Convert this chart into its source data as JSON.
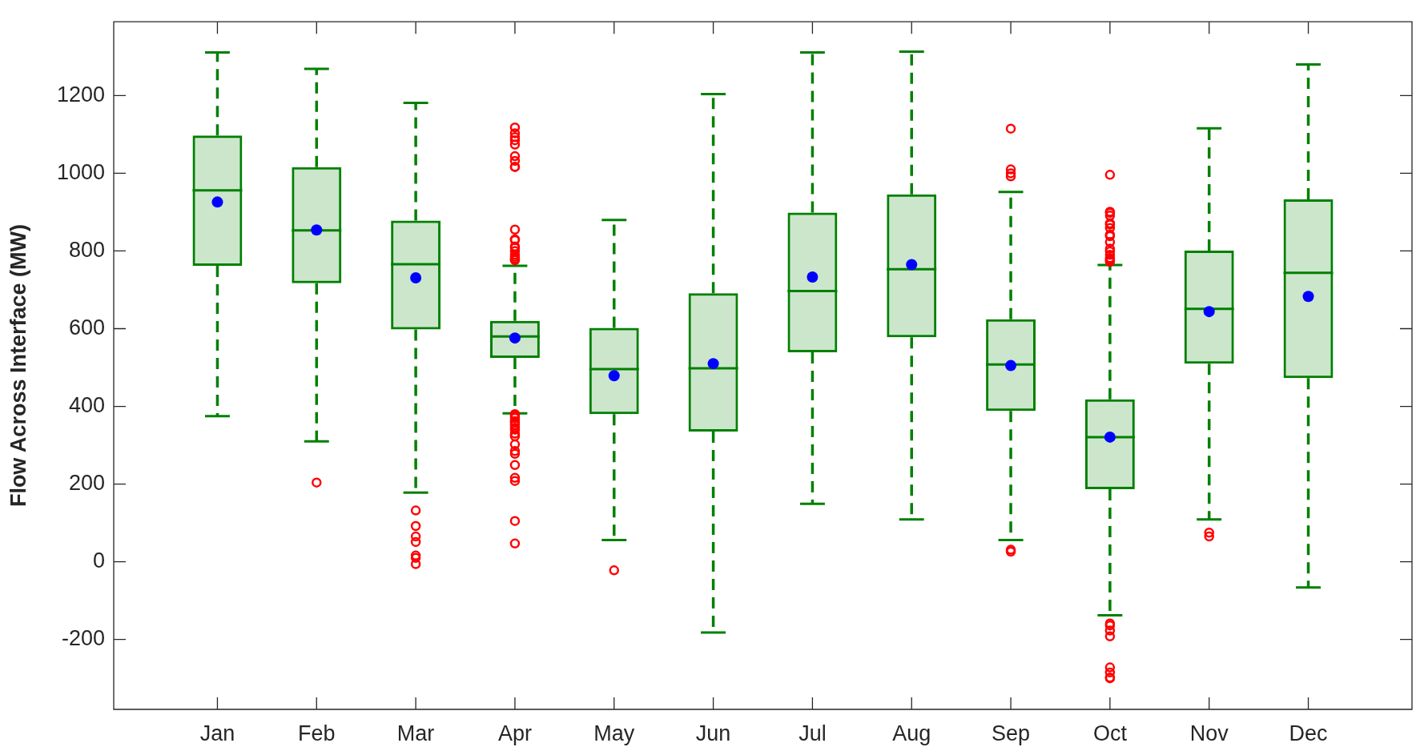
{
  "chart_data": {
    "type": "box",
    "ylabel": "Flow Across Interface (MW)",
    "categories": [
      "Jan",
      "Feb",
      "Mar",
      "Apr",
      "May",
      "Jun",
      "Jul",
      "Aug",
      "Sep",
      "Oct",
      "Nov",
      "Dec"
    ],
    "ylim": [
      -380,
      1390
    ],
    "yticks": [
      -200,
      0,
      200,
      400,
      600,
      800,
      1000,
      1200
    ],
    "series": [
      {
        "color": "#008000",
        "boxes": [
          {
            "low": 375,
            "q1": 762,
            "median": 956,
            "q3": 1097,
            "high": 1311,
            "mean": 926
          },
          {
            "low": 310,
            "q1": 717,
            "median": 853,
            "q3": 1016,
            "high": 1269,
            "mean": 854,
            "outliers": [
              204
            ]
          },
          {
            "low": 178,
            "q1": 598,
            "median": 766,
            "q3": 878,
            "high": 1181,
            "mean": 731,
            "outliers": [
              132,
              92,
              65,
              51,
              16,
              10,
              -6
            ]
          },
          {
            "low": 382,
            "q1": 525,
            "median": 580,
            "q3": 620,
            "high": 762,
            "mean": 576,
            "outliers": [
              1118,
              1103,
              1093,
              1085,
              1074,
              1044,
              1032,
              1017,
              1016,
              855,
              830,
              828,
              812,
              808,
              800,
              790,
              785,
              780,
              778,
              776,
              380,
              378,
              375,
              370,
              362,
              358,
              352,
              345,
              340,
              330,
              323,
              302,
              285,
              278,
              249,
              216,
              208,
              105,
              47
            ]
          },
          {
            "low": 56,
            "q1": 380,
            "median": 496,
            "q3": 602,
            "high": 880,
            "mean": 479,
            "outliers": [
              -22
            ]
          },
          {
            "low": -182,
            "q1": 335,
            "median": 498,
            "q3": 691,
            "high": 1204,
            "mean": 510
          },
          {
            "low": 149,
            "q1": 539,
            "median": 697,
            "q3": 899,
            "high": 1311,
            "mean": 733
          },
          {
            "low": 109,
            "q1": 578,
            "median": 753,
            "q3": 946,
            "high": 1313,
            "mean": 765
          },
          {
            "low": 56,
            "q1": 388,
            "median": 508,
            "q3": 624,
            "high": 952,
            "mean": 505,
            "outliers": [
              1115,
              1010,
              1000,
              992,
              31,
              26
            ]
          },
          {
            "low": -138,
            "q1": 187,
            "median": 321,
            "q3": 418,
            "high": 764,
            "mean": 321,
            "outliers": [
              996,
              901,
              898,
              891,
              871,
              868,
              859,
              842,
              838,
              823,
              806,
              799,
              790,
              782,
              778,
              775,
              772,
              -159,
              -164,
              -177,
              -192,
              -272,
              -285,
              -298,
              -300
            ]
          },
          {
            "low": 109,
            "q1": 510,
            "median": 651,
            "q3": 801,
            "high": 1116,
            "mean": 644,
            "outliers": [
              75,
              65
            ]
          },
          {
            "low": -66,
            "q1": 473,
            "median": 744,
            "q3": 933,
            "high": 1280,
            "mean": 683
          }
        ]
      }
    ]
  }
}
